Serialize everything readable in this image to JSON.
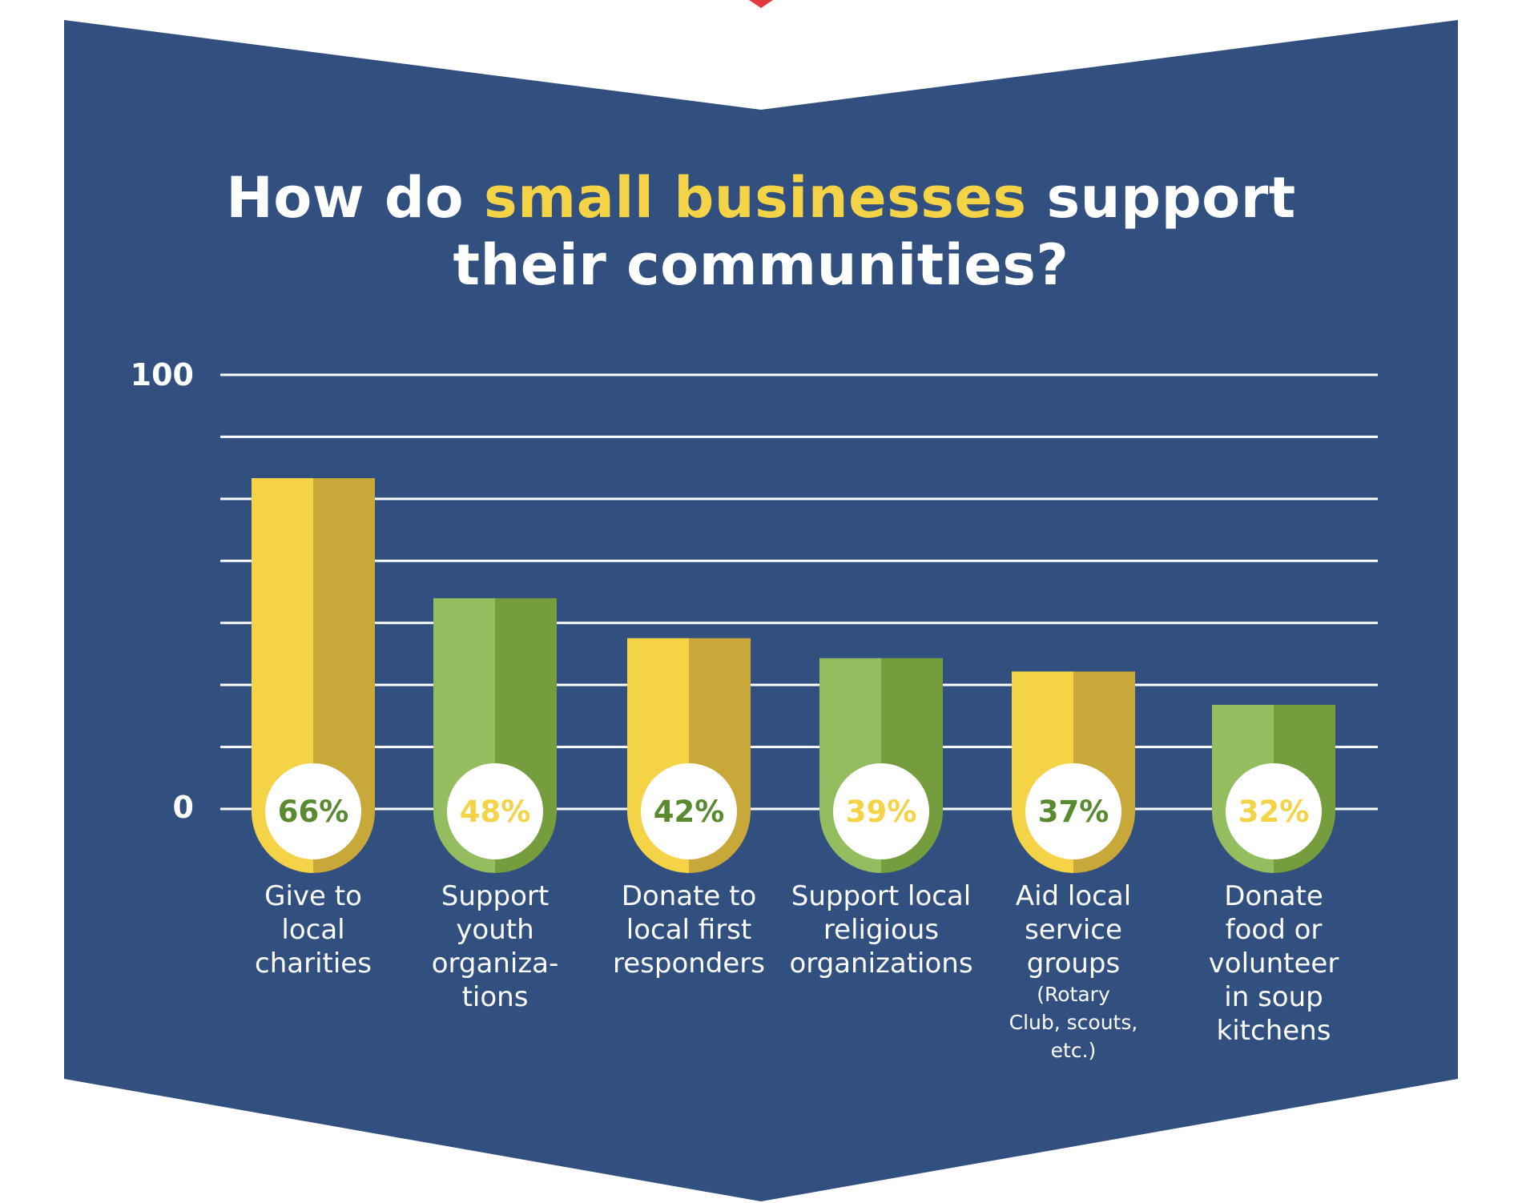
{
  "colors": {
    "background": "#31507f",
    "gridline": "#ffffff",
    "yellow_light": "#f5d347",
    "yellow_dark": "#c9a83a",
    "green_light": "#94bd5f",
    "green_dark": "#759c3d",
    "label_on_yellow": "#5a8a2f",
    "label_on_green": "#f5d347",
    "ribbon_red": "#e0393e"
  },
  "title": {
    "part1": "How do ",
    "highlight": "small businesses",
    "part2": " support",
    "line2": "their communities?"
  },
  "chart_data": {
    "type": "bar",
    "title": "How do small businesses support their communities?",
    "xlabel": "",
    "ylabel": "",
    "ylim": [
      0,
      100
    ],
    "yticks": [
      "100",
      "0"
    ],
    "gridlines": 8,
    "grid": true,
    "categories": [
      {
        "lines": [
          "Give to",
          "local",
          "charities"
        ],
        "small": []
      },
      {
        "lines": [
          "Support",
          "youth",
          "organiza-",
          "tions"
        ],
        "small": []
      },
      {
        "lines": [
          "Donate to",
          "local first",
          "responders"
        ],
        "small": []
      },
      {
        "lines": [
          "Support local",
          "religious",
          "organizations"
        ],
        "small": []
      },
      {
        "lines": [
          "Aid local",
          "service",
          "groups"
        ],
        "small": [
          "(Rotary",
          "Club, scouts,",
          "etc.)"
        ]
      },
      {
        "lines": [
          "Donate",
          "food or",
          "volunteer",
          "in soup",
          "kitchens"
        ],
        "small": []
      }
    ],
    "values": [
      66,
      48,
      42,
      39,
      37,
      32
    ],
    "value_labels": [
      "66%",
      "48%",
      "42%",
      "39%",
      "37%",
      "32%"
    ],
    "bar_colors": [
      "yellow",
      "green",
      "yellow",
      "green",
      "yellow",
      "green"
    ]
  }
}
